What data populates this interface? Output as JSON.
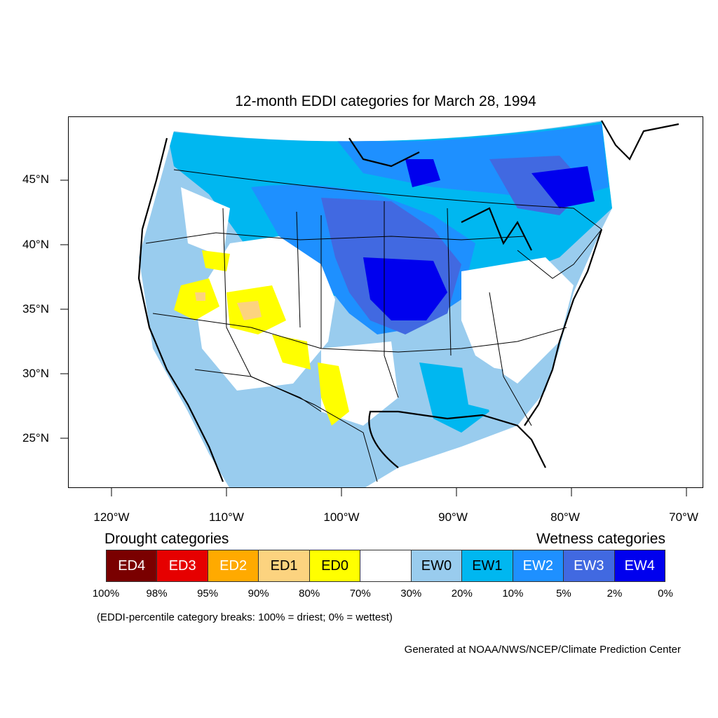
{
  "title": "12-month EDDI categories for March 28, 1994",
  "lat_labels": [
    "45°N",
    "40°N",
    "35°N",
    "30°N",
    "25°N"
  ],
  "lon_labels": [
    "120°W",
    "110°W",
    "100°W",
    "90°W",
    "80°W",
    "70°W"
  ],
  "legend": {
    "drought_heading": "Drought categories",
    "wetness_heading": "Wetness categories",
    "categories": [
      {
        "label": "ED4",
        "color": "#7a0000",
        "text_color": "#ffffff"
      },
      {
        "label": "ED3",
        "color": "#e60000",
        "text_color": "#ffffff"
      },
      {
        "label": "ED2",
        "color": "#ffaa00",
        "text_color": "#ffffff"
      },
      {
        "label": "ED1",
        "color": "#fcd37f",
        "text_color": "#000000"
      },
      {
        "label": "ED0",
        "color": "#ffff00",
        "text_color": "#000000"
      },
      {
        "label": "",
        "color": "#ffffff",
        "text_color": "#000000"
      },
      {
        "label": "EW0",
        "color": "#99ccee",
        "text_color": "#000000"
      },
      {
        "label": "EW1",
        "color": "#00b7f0",
        "text_color": "#000000"
      },
      {
        "label": "EW2",
        "color": "#1e90ff",
        "text_color": "#ffffff"
      },
      {
        "label": "EW3",
        "color": "#4169e1",
        "text_color": "#ffffff"
      },
      {
        "label": "EW4",
        "color": "#0000ee",
        "text_color": "#ffffff"
      }
    ],
    "percentiles": [
      "100%",
      "98%",
      "95%",
      "90%",
      "80%",
      "70%",
      "30%",
      "20%",
      "10%",
      "5%",
      "2%",
      "0%"
    ]
  },
  "note": "(EDDI-percentile category breaks: 100% = driest; 0% = wettest)",
  "credit": "Generated at NOAA/NWS/NCEP/Climate Prediction Center"
}
